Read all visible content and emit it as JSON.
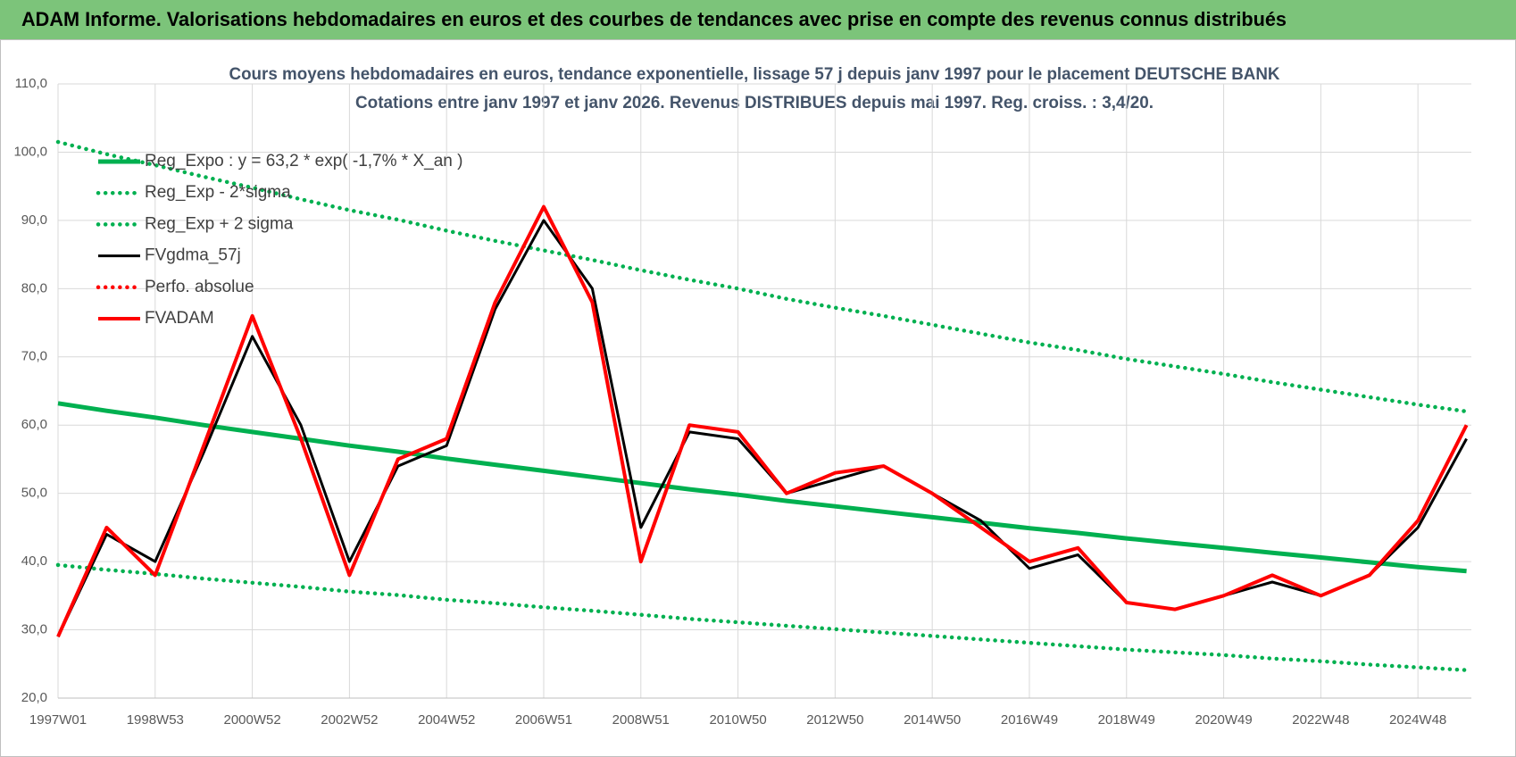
{
  "chart_data": {
    "type": "line",
    "title": "ADAM Informe. Valorisations hebdomadaires en euros et des courbes de tendances avec prise en compte des revenus connus distribués",
    "subtitle": [
      "Cours moyens hebdomadaires en euros, tendance exponentielle, lissage 57 j depuis janv 1997  pour le placement DEUTSCHE BANK",
      "Cotations entre janv 1997 et janv 2026. Revenus DISTRIBUES depuis mai 1997.  Reg. croiss. : 3,4/20."
    ],
    "categories": [
      "1997W01",
      null,
      "1998W53",
      null,
      "2000W52",
      null,
      "2002W52",
      null,
      "2004W52",
      null,
      "2006W51",
      null,
      "2008W51",
      null,
      "2010W50",
      null,
      "2012W50",
      null,
      "2014W50",
      null,
      "2016W49",
      null,
      "2018W49",
      null,
      "2020W49",
      null,
      "2022W48",
      null,
      "2024W48",
      null
    ],
    "ylim": [
      20,
      110
    ],
    "yticks": [
      {
        "value": 20,
        "label": "20,0"
      },
      {
        "value": 30,
        "label": "30,0"
      },
      {
        "value": 40,
        "label": "40,0"
      },
      {
        "value": 50,
        "label": "50,0"
      },
      {
        "value": 60,
        "label": "60,0"
      },
      {
        "value": 70,
        "label": "70,0"
      },
      {
        "value": 80,
        "label": "80,0"
      },
      {
        "value": 90,
        "label": "90,0"
      },
      {
        "value": 100,
        "label": "100,0"
      },
      {
        "value": 110,
        "label": "110,0"
      }
    ],
    "grid": true,
    "legend": "upper left",
    "series": [
      {
        "name": "Reg_Expo : y = 63,2 * exp( -1,7% *  X_an )",
        "color": "#00b050",
        "style": "solid",
        "values": [
          63.2,
          62.1,
          61.1,
          60.0,
          59.0,
          58.0,
          57.0,
          56.1,
          55.1,
          54.2,
          53.3,
          52.4,
          51.5,
          50.6,
          49.8,
          48.9,
          48.1,
          47.3,
          46.5,
          45.7,
          44.9,
          44.2,
          43.4,
          42.7,
          42.0,
          41.3,
          40.6,
          39.9,
          39.2,
          38.6
        ]
      },
      {
        "name": "Reg_Exp - 2*sigma",
        "color": "#00b050",
        "style": "dotted",
        "values": [
          39.5,
          38.8,
          38.2,
          37.5,
          36.9,
          36.3,
          35.6,
          35.1,
          34.4,
          33.9,
          33.3,
          32.8,
          32.2,
          31.6,
          31.1,
          30.6,
          30.1,
          29.6,
          29.1,
          28.6,
          28.1,
          27.6,
          27.1,
          26.7,
          26.3,
          25.8,
          25.4,
          24.9,
          24.5,
          24.1
        ]
      },
      {
        "name": "Reg_Exp + 2 sigma",
        "color": "#00b050",
        "style": "dotted",
        "values": [
          101.5,
          99.7,
          98.1,
          96.4,
          94.8,
          93.1,
          91.5,
          90.1,
          88.5,
          87.0,
          85.6,
          84.2,
          82.7,
          81.3,
          80.0,
          78.5,
          77.2,
          76.0,
          74.7,
          73.4,
          72.1,
          71.0,
          69.7,
          68.6,
          67.5,
          66.3,
          65.2,
          64.1,
          63.0,
          62.0
        ]
      },
      {
        "name": "FVgdma_57j",
        "color": "#000000",
        "style": "solid",
        "values": [
          29,
          44,
          40,
          56,
          73,
          60,
          40,
          54,
          57,
          77,
          90,
          80,
          45,
          59,
          58,
          50,
          52,
          54,
          50,
          46,
          39,
          41,
          34,
          33,
          35,
          37,
          35,
          38,
          45,
          58
        ]
      },
      {
        "name": "Perfo. absolue",
        "color": "#ff0000",
        "style": "dotted",
        "values": [
          null,
          null,
          null,
          null,
          null,
          null,
          null,
          null,
          null,
          null,
          null,
          null,
          null,
          null,
          null,
          null,
          null,
          null,
          null,
          null,
          null,
          null,
          null,
          null,
          null,
          null,
          null,
          null,
          null,
          null
        ]
      },
      {
        "name": "FVADAM",
        "color": "#ff0000",
        "style": "solid",
        "values": [
          29,
          45,
          38,
          57,
          76,
          58,
          38,
          55,
          58,
          78,
          92,
          78,
          40,
          60,
          59,
          50,
          53,
          54,
          50,
          45,
          40,
          42,
          34,
          33,
          35,
          38,
          35,
          38,
          46,
          60
        ]
      }
    ]
  }
}
